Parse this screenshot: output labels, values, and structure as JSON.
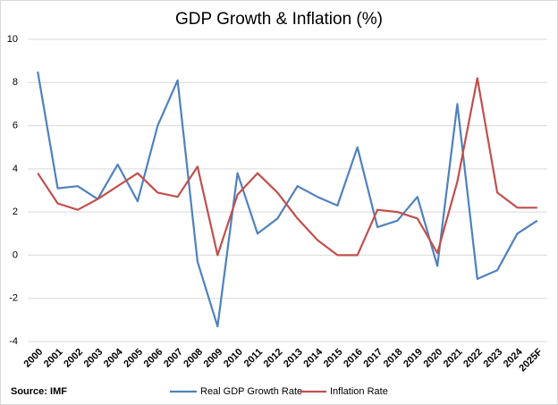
{
  "chart_data": {
    "type": "line",
    "title": "GDP Growth & Inflation (%)",
    "source": "Source: IMF",
    "categories": [
      "2000",
      "2001",
      "2002",
      "2003",
      "2004",
      "2005",
      "2006",
      "2007",
      "2008",
      "2009",
      "2010",
      "2011",
      "2012",
      "2013",
      "2014",
      "2015",
      "2016",
      "2017",
      "2018",
      "2019",
      "2020",
      "2021",
      "2022",
      "2023",
      "2024",
      "2025F"
    ],
    "series": [
      {
        "name": "Real GDP Growth Rate",
        "color": "#4f81bd",
        "values": [
          8.5,
          3.1,
          3.2,
          2.6,
          4.2,
          2.5,
          6.0,
          8.1,
          -0.3,
          -3.3,
          3.8,
          1.0,
          1.7,
          3.2,
          2.7,
          2.3,
          5.0,
          1.3,
          1.6,
          2.7,
          -0.5,
          7.0,
          -1.1,
          -0.7,
          1.0,
          1.6
        ]
      },
      {
        "name": "Inflation Rate",
        "color": "#c0504d",
        "values": [
          3.8,
          2.4,
          2.1,
          2.6,
          3.2,
          3.8,
          2.9,
          2.7,
          4.1,
          0.0,
          2.8,
          3.8,
          2.9,
          1.7,
          0.7,
          0.0,
          0.0,
          2.1,
          2.0,
          1.7,
          0.1,
          3.4,
          8.2,
          2.9,
          2.2,
          2.2
        ]
      }
    ],
    "ylim": [
      -4,
      10
    ],
    "yticks": [
      -4,
      -2,
      0,
      2,
      4,
      6,
      8,
      10
    ],
    "grid": true,
    "legend": "bottom"
  }
}
